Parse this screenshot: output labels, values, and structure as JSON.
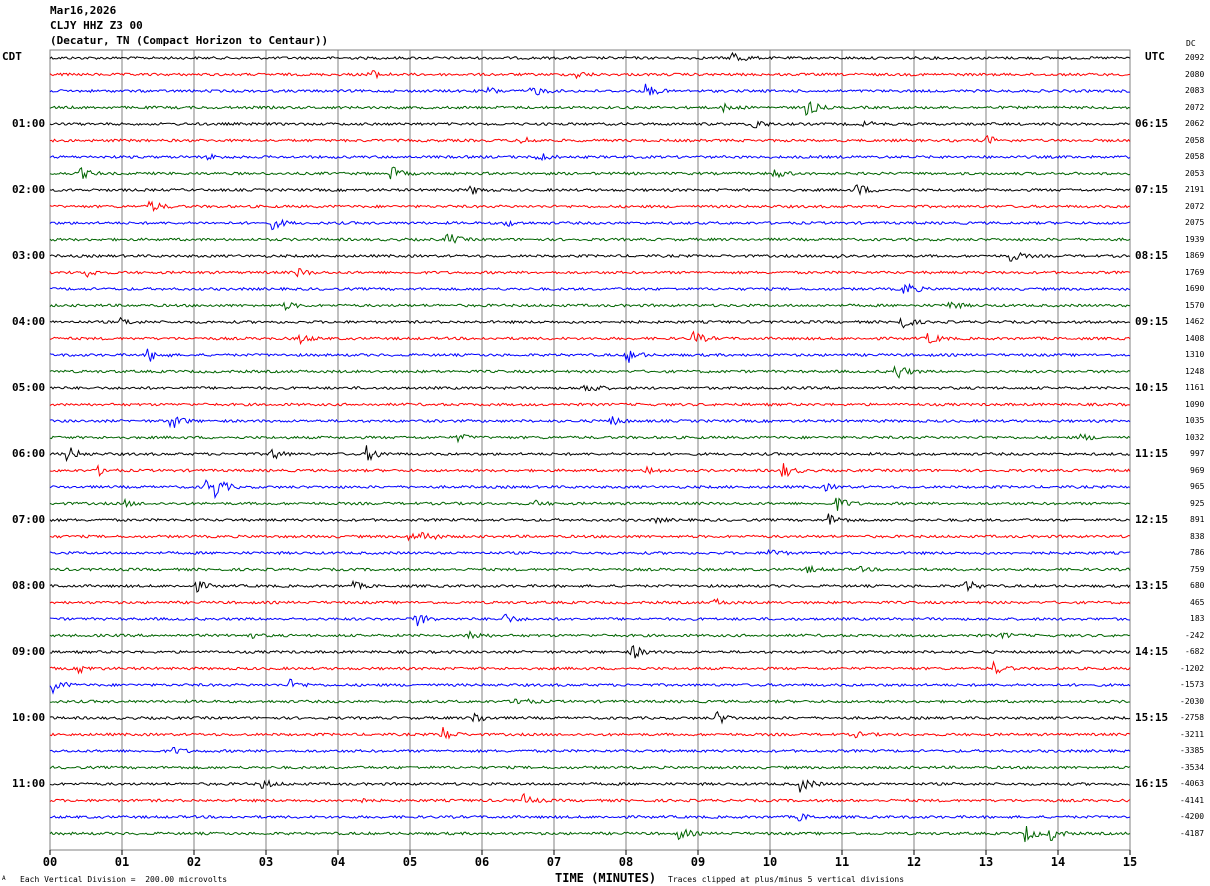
{
  "header": {
    "date": "Mar16,2026",
    "station": "CLJY HHZ Z3 00",
    "location": "(Decatur, TN (Compact Horizon to Centaur))"
  },
  "left_tz": "CDT",
  "right_tz": "UTC",
  "dc_label": "DC",
  "footer": {
    "xlabel": "TIME (MINUTES)",
    "scale": "Each Vertical Division =  200.00 microvolts",
    "clip": "Traces clipped at plus/minus 5 vertical divisions",
    "corner": "A"
  },
  "chart_data": {
    "type": "line",
    "title": "CLJY HHZ Z3 00 helicorder",
    "xlabel": "TIME (MINUTES)",
    "xlim": [
      0,
      15
    ],
    "x_ticks": [
      "00",
      "01",
      "02",
      "03",
      "04",
      "05",
      "06",
      "07",
      "08",
      "09",
      "10",
      "11",
      "12",
      "13",
      "14",
      "15"
    ],
    "trace_colors": [
      "#000000",
      "#ff0000",
      "#0000ff",
      "#006400"
    ],
    "left_hour_labels": [
      "01:00",
      "02:00",
      "03:00",
      "04:00",
      "05:00",
      "06:00",
      "07:00",
      "08:00",
      "09:00",
      "10:00",
      "11:00"
    ],
    "right_hour_labels": [
      "06:15",
      "07:15",
      "08:15",
      "09:15",
      "10:15",
      "11:15",
      "12:15",
      "13:15",
      "14:15",
      "15:15",
      "16:15"
    ],
    "dc_offsets": [
      "2092",
      "2080",
      "2083",
      "2072",
      "2062",
      "2058",
      "2058",
      "2053",
      "2191",
      "2072",
      "2075",
      "1939",
      "1869",
      "1769",
      "1690",
      "1570",
      "1462",
      "1408",
      "1310",
      "1248",
      "1161",
      "1090",
      "1035",
      "1032",
      "997",
      "969",
      "965",
      "925",
      "891",
      "838",
      "786",
      "759",
      "680",
      "465",
      "183",
      "-242",
      "-682",
      "-1202",
      "-1573",
      "-2030",
      "-2758",
      "-3211",
      "-3385",
      "-3534",
      "-4063",
      "-4141",
      "-4200",
      "-4187"
    ]
  }
}
